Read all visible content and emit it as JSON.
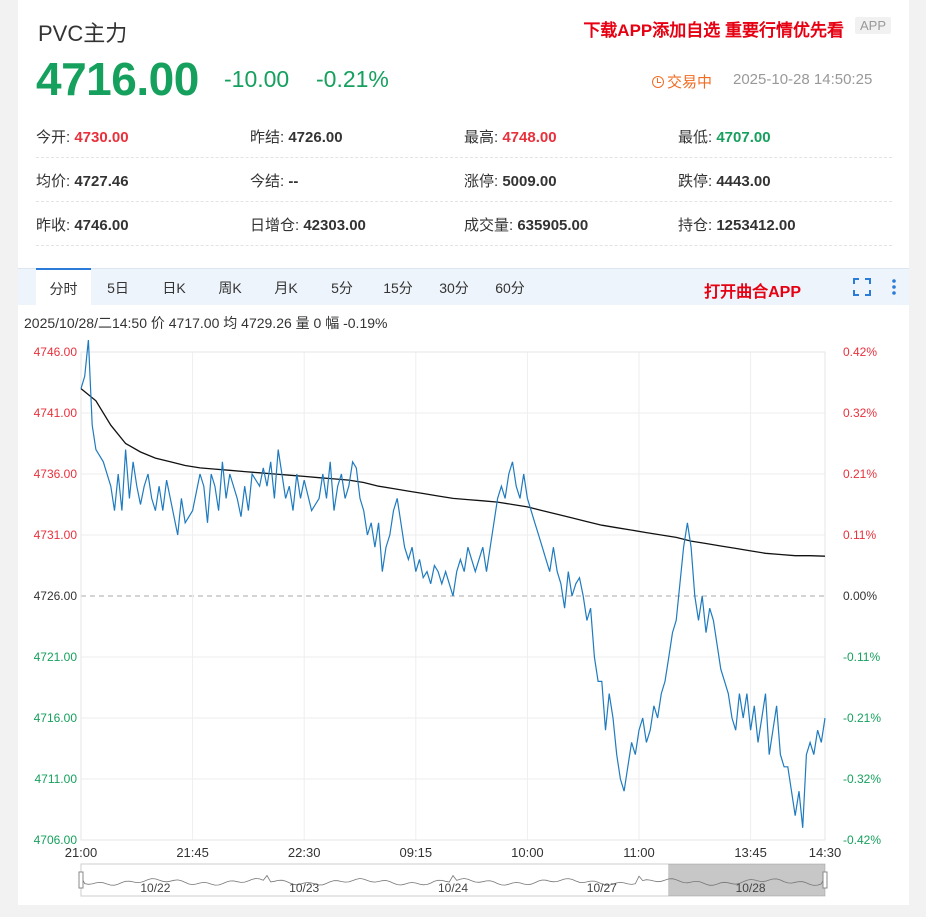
{
  "header": {
    "title": "PVC主力",
    "promo": "下载APP添加自选 重要行情优先看",
    "app_badge": "APP",
    "price": "4716.00",
    "change": "-10.00",
    "change_pct": "-0.21%",
    "status": "交易中",
    "datetime": "2025-10-28 14:50:25"
  },
  "stats": [
    [
      {
        "label": "今开:",
        "value": "4730.00",
        "color": "red"
      },
      {
        "label": "昨结:",
        "value": "4726.00",
        "color": ""
      },
      {
        "label": "最高:",
        "value": "4748.00",
        "color": "red"
      },
      {
        "label": "最低:",
        "value": "4707.00",
        "color": "green"
      }
    ],
    [
      {
        "label": "均价:",
        "value": "4727.46",
        "color": ""
      },
      {
        "label": "今结:",
        "value": "--",
        "color": ""
      },
      {
        "label": "涨停:",
        "value": "5009.00",
        "color": ""
      },
      {
        "label": "跌停:",
        "value": "4443.00",
        "color": ""
      }
    ],
    [
      {
        "label": "昨收:",
        "value": "4746.00",
        "color": ""
      },
      {
        "label": "日增仓:",
        "value": "42303.00",
        "color": ""
      },
      {
        "label": "成交量:",
        "value": "635905.00",
        "color": ""
      },
      {
        "label": "持仓:",
        "value": "1253412.00",
        "color": ""
      }
    ]
  ],
  "tabs": [
    "分时",
    "5日",
    "日K",
    "周K",
    "月K",
    "5分",
    "15分",
    "30分",
    "60分"
  ],
  "active_tab": 0,
  "open_app": "打开曲合APP",
  "info_line": "2025/10/28/二14:50  价 4717.00  均 4729.26  量 0  幅 -0.19%",
  "colors": {
    "up": "#e8313c",
    "down": "#16a05d",
    "price_line": "#1f7bbf",
    "avg_line": "#111111",
    "accent": "#2b7bd9"
  },
  "chart_data": {
    "type": "line",
    "y_ticks": [
      "4746.00",
      "4741.00",
      "4736.00",
      "4731.00",
      "4726.00",
      "4721.00",
      "4716.00",
      "4711.00",
      "4706.00"
    ],
    "y_pct_ticks": [
      "0.42%",
      "0.32%",
      "0.21%",
      "0.11%",
      "0.00%",
      "-0.11%",
      "-0.21%",
      "-0.32%",
      "-0.42%"
    ],
    "ylim": [
      4706,
      4746
    ],
    "base": 4726,
    "x_ticks": [
      "21:00",
      "21:45",
      "22:30",
      "09:15",
      "10:00",
      "11:00",
      "13:45",
      "14:30"
    ],
    "x_range": [
      0,
      100
    ],
    "x_tick_pos": [
      0,
      15,
      30,
      45,
      60,
      75,
      90,
      100
    ],
    "price_series": [
      [
        0,
        4743
      ],
      [
        0.5,
        4744
      ],
      [
        1,
        4747
      ],
      [
        1.5,
        4740
      ],
      [
        2,
        4738
      ],
      [
        3,
        4737
      ],
      [
        4,
        4735
      ],
      [
        4.5,
        4733
      ],
      [
        5,
        4736
      ],
      [
        5.5,
        4733
      ],
      [
        6,
        4738
      ],
      [
        6.5,
        4734
      ],
      [
        7,
        4737
      ],
      [
        7.5,
        4735
      ],
      [
        8,
        4733.5
      ],
      [
        8.5,
        4735
      ],
      [
        9,
        4736
      ],
      [
        9.5,
        4734
      ],
      [
        10,
        4733
      ],
      [
        10.5,
        4735
      ],
      [
        11,
        4733
      ],
      [
        11.5,
        4735.5
      ],
      [
        12,
        4734
      ],
      [
        13,
        4731
      ],
      [
        13.5,
        4734
      ],
      [
        14,
        4732
      ],
      [
        15,
        4733
      ],
      [
        16,
        4736
      ],
      [
        16.5,
        4735
      ],
      [
        17,
        4732
      ],
      [
        17.5,
        4736
      ],
      [
        18,
        4735
      ],
      [
        18.5,
        4733
      ],
      [
        19,
        4737
      ],
      [
        19.5,
        4734
      ],
      [
        20,
        4736
      ],
      [
        21,
        4734
      ],
      [
        21.5,
        4732.5
      ],
      [
        22,
        4735
      ],
      [
        22.5,
        4733
      ],
      [
        23,
        4736
      ],
      [
        24,
        4735
      ],
      [
        24.5,
        4736.5
      ],
      [
        25,
        4735
      ],
      [
        25.5,
        4737
      ],
      [
        26,
        4734
      ],
      [
        26.5,
        4738
      ],
      [
        27,
        4736
      ],
      [
        27.5,
        4734
      ],
      [
        28,
        4735
      ],
      [
        28.5,
        4733
      ],
      [
        29,
        4736
      ],
      [
        29.5,
        4734
      ],
      [
        30,
        4735.5
      ],
      [
        31,
        4733
      ],
      [
        32,
        4734
      ],
      [
        32.5,
        4736
      ],
      [
        33,
        4734
      ],
      [
        33.5,
        4737
      ],
      [
        34,
        4733
      ],
      [
        34.5,
        4735
      ],
      [
        35,
        4736
      ],
      [
        35.5,
        4734
      ],
      [
        36,
        4735
      ],
      [
        36.5,
        4737
      ],
      [
        37,
        4736.5
      ],
      [
        37.5,
        4734
      ],
      [
        38,
        4733
      ],
      [
        38.5,
        4731
      ],
      [
        39,
        4732
      ],
      [
        39.5,
        4730
      ],
      [
        40,
        4732
      ],
      [
        40.5,
        4728
      ],
      [
        41,
        4730
      ],
      [
        41.5,
        4731
      ],
      [
        42,
        4733
      ],
      [
        42.5,
        4734
      ],
      [
        43,
        4732
      ],
      [
        43.5,
        4730
      ],
      [
        44,
        4729
      ],
      [
        44.5,
        4730
      ],
      [
        45,
        4728
      ],
      [
        45.5,
        4729
      ],
      [
        46,
        4727.5
      ],
      [
        46.5,
        4728
      ],
      [
        47,
        4727
      ],
      [
        47.5,
        4728.5
      ],
      [
        48,
        4728
      ],
      [
        48.5,
        4727
      ],
      [
        49,
        4728
      ],
      [
        49.5,
        4727
      ],
      [
        50,
        4726
      ],
      [
        50.5,
        4728
      ],
      [
        51,
        4729
      ],
      [
        51.5,
        4728
      ],
      [
        52,
        4730
      ],
      [
        52.5,
        4729
      ],
      [
        53,
        4728
      ],
      [
        53.5,
        4729
      ],
      [
        54,
        4730
      ],
      [
        54.5,
        4728
      ],
      [
        55,
        4730
      ],
      [
        55.5,
        4732
      ],
      [
        56,
        4734
      ],
      [
        56.5,
        4735
      ],
      [
        57,
        4734
      ],
      [
        57.5,
        4736
      ],
      [
        58,
        4737
      ],
      [
        58.5,
        4735
      ],
      [
        59,
        4734
      ],
      [
        59.5,
        4736
      ],
      [
        60,
        4734
      ],
      [
        60.5,
        4733
      ],
      [
        61,
        4732
      ],
      [
        61.5,
        4731
      ],
      [
        62,
        4730
      ],
      [
        62.5,
        4729
      ],
      [
        63,
        4728
      ],
      [
        63.5,
        4730
      ],
      [
        64,
        4728
      ],
      [
        64.5,
        4727
      ],
      [
        65,
        4725
      ],
      [
        65.5,
        4728
      ],
      [
        66,
        4726
      ],
      [
        66.5,
        4727
      ],
      [
        67,
        4727.5
      ],
      [
        67.5,
        4726
      ],
      [
        68,
        4724
      ],
      [
        68.5,
        4725
      ],
      [
        69,
        4721
      ],
      [
        69.5,
        4719
      ],
      [
        70,
        4719
      ],
      [
        70.5,
        4715
      ],
      [
        71,
        4718
      ],
      [
        71.5,
        4716
      ],
      [
        72,
        4713
      ],
      [
        72.5,
        4711
      ],
      [
        73,
        4710
      ],
      [
        73.5,
        4712
      ],
      [
        74,
        4714
      ],
      [
        74.5,
        4713
      ],
      [
        75,
        4715
      ],
      [
        75.5,
        4716
      ],
      [
        76,
        4714
      ],
      [
        76.5,
        4715
      ],
      [
        77,
        4717
      ],
      [
        77.5,
        4716
      ],
      [
        78,
        4718
      ],
      [
        78.5,
        4719
      ],
      [
        79,
        4721
      ],
      [
        79.5,
        4723
      ],
      [
        80,
        4724
      ],
      [
        80.5,
        4727
      ],
      [
        81,
        4730
      ],
      [
        81.5,
        4732
      ],
      [
        82,
        4730
      ],
      [
        82.5,
        4726
      ],
      [
        83,
        4724
      ],
      [
        83.5,
        4726
      ],
      [
        84,
        4723
      ],
      [
        84.5,
        4725
      ],
      [
        85,
        4724
      ],
      [
        85.5,
        4722
      ],
      [
        86,
        4720
      ],
      [
        86.5,
        4719
      ],
      [
        87,
        4718
      ],
      [
        87.5,
        4716
      ],
      [
        88,
        4715
      ],
      [
        88.5,
        4718
      ],
      [
        89,
        4716
      ],
      [
        89.5,
        4718
      ],
      [
        90,
        4715
      ],
      [
        90.5,
        4717
      ],
      [
        91,
        4714
      ],
      [
        91.5,
        4716
      ],
      [
        92,
        4718
      ],
      [
        92.5,
        4713
      ],
      [
        93,
        4715
      ],
      [
        93.5,
        4717
      ],
      [
        94,
        4713
      ],
      [
        94.5,
        4712
      ],
      [
        95,
        4712
      ],
      [
        95.5,
        4710
      ],
      [
        96,
        4708
      ],
      [
        96.5,
        4710
      ],
      [
        97,
        4707
      ],
      [
        97.5,
        4713
      ],
      [
        98,
        4714
      ],
      [
        98.5,
        4713
      ],
      [
        99,
        4715
      ],
      [
        99.5,
        4714
      ],
      [
        100,
        4716
      ]
    ],
    "avg_series": [
      [
        0,
        4743
      ],
      [
        2,
        4742
      ],
      [
        4,
        4740
      ],
      [
        6,
        4738.5
      ],
      [
        8,
        4737.8
      ],
      [
        10,
        4737.3
      ],
      [
        12,
        4737
      ],
      [
        14,
        4736.7
      ],
      [
        16,
        4736.5
      ],
      [
        18,
        4736.4
      ],
      [
        20,
        4736.3
      ],
      [
        22,
        4736.2
      ],
      [
        24,
        4736.1
      ],
      [
        26,
        4736
      ],
      [
        28,
        4735.9
      ],
      [
        30,
        4735.8
      ],
      [
        32,
        4735.7
      ],
      [
        34,
        4735.6
      ],
      [
        36,
        4735.5
      ],
      [
        38,
        4735.3
      ],
      [
        40,
        4735
      ],
      [
        42,
        4734.8
      ],
      [
        44,
        4734.6
      ],
      [
        46,
        4734.4
      ],
      [
        48,
        4734.2
      ],
      [
        50,
        4734
      ],
      [
        52,
        4733.9
      ],
      [
        54,
        4733.8
      ],
      [
        56,
        4733.7
      ],
      [
        58,
        4733.5
      ],
      [
        60,
        4733.3
      ],
      [
        62,
        4733
      ],
      [
        64,
        4732.7
      ],
      [
        66,
        4732.4
      ],
      [
        68,
        4732.1
      ],
      [
        70,
        4731.8
      ],
      [
        72,
        4731.6
      ],
      [
        74,
        4731.4
      ],
      [
        76,
        4731.2
      ],
      [
        78,
        4731
      ],
      [
        80,
        4730.8
      ],
      [
        82,
        4730.5
      ],
      [
        84,
        4730.3
      ],
      [
        86,
        4730.1
      ],
      [
        88,
        4729.9
      ],
      [
        90,
        4729.7
      ],
      [
        92,
        4729.5
      ],
      [
        94,
        4729.4
      ],
      [
        96,
        4729.3
      ],
      [
        98,
        4729.3
      ],
      [
        100,
        4729.26
      ]
    ],
    "nav_labels": [
      "10/22",
      "10/23",
      "10/24",
      "10/27",
      "10/28"
    ]
  }
}
